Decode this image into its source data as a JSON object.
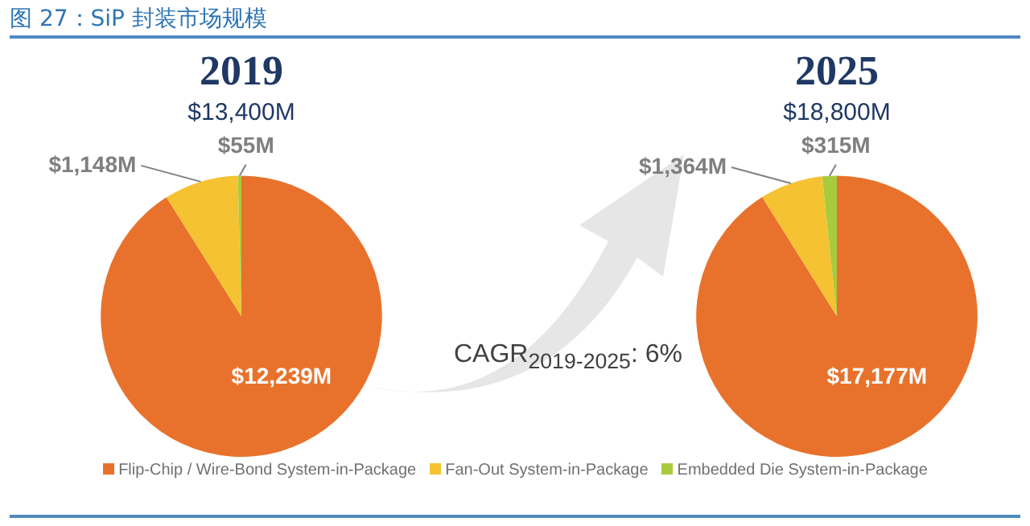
{
  "chart_data": [
    {
      "type": "pie",
      "title": "2019",
      "subtitle": "$13,400M",
      "annotations": [
        "图 27：SiP 封装市场规模"
      ],
      "categories": [
        "Flip-Chip / Wire-Bond System-in-Package",
        "Fan-Out System-in-Package",
        "Embedded Die System-in-Package"
      ],
      "values": [
        12239,
        1148,
        55
      ],
      "colors": [
        "#e8722c",
        "#f5c232",
        "#a8cb3e"
      ],
      "value_labels": [
        "$12,239M",
        "$1,148M",
        "$55M"
      ],
      "legend": "bottom"
    },
    {
      "type": "pie",
      "title": "2025",
      "subtitle": "$18,800M",
      "annotations": [
        "CAGR$_{2019-2025}$: 6%"
      ],
      "categories": [
        null,
        null,
        null
      ],
      "values": [
        17177,
        1364,
        315
      ],
      "colors": [
        "#e8722c",
        "#f5c232",
        "#a8cb3e"
      ],
      "value_labels": [
        "$17,177M",
        "$1,364M",
        "$315M"
      ]
    }
  ]
}
